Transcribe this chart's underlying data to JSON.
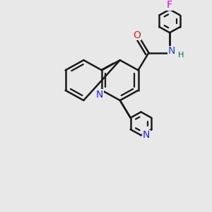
{
  "background_color": "#e8e8e8",
  "bond_color": "#1a1a1a",
  "bond_width": 1.8,
  "atom_colors": {
    "N_blue": "#2222dd",
    "N_amide": "#2244bb",
    "O": "#dd2222",
    "F": "#cc00cc",
    "H": "#006666"
  },
  "font_size": 9.5,
  "fig_width": 3.0,
  "fig_height": 3.0,
  "dpi": 100,
  "xlim": [
    0,
    10
  ],
  "ylim": [
    0,
    10
  ]
}
